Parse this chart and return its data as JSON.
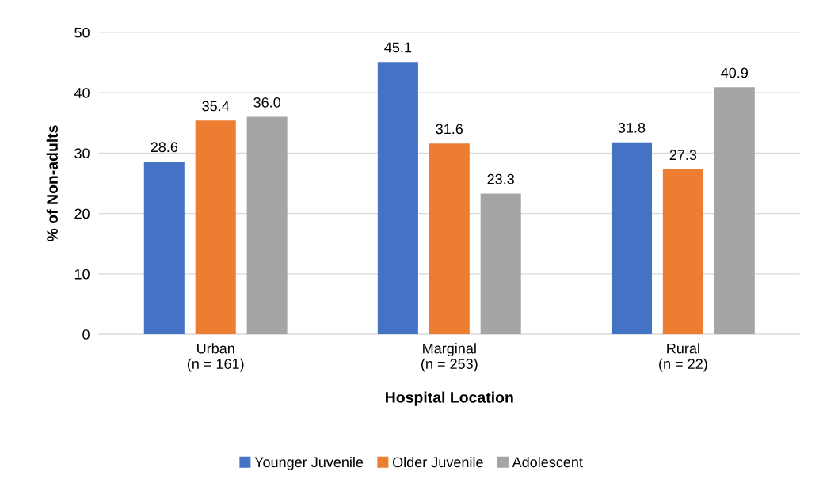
{
  "chart_data": {
    "type": "bar",
    "xlabel": "Hospital Location",
    "ylabel": "% of Non-adults",
    "categories": [
      "Urban\n(n = 161)",
      "Marginal\n(n = 253)",
      "Rural\n(n = 22)"
    ],
    "series": [
      {
        "name": "Younger Juvenile",
        "color": "#4472c4",
        "values": [
          28.6,
          45.1,
          31.8
        ],
        "value_labels": [
          "28.6",
          "45.1",
          "31.8"
        ]
      },
      {
        "name": "Older Juvenile",
        "color": "#ed7d31",
        "values": [
          35.4,
          31.6,
          27.3
        ],
        "value_labels": [
          "35.4",
          "31.6",
          "27.3"
        ]
      },
      {
        "name": "Adolescent",
        "color": "#a5a5a5",
        "values": [
          36.0,
          23.3,
          40.9
        ],
        "value_labels": [
          "36.0",
          "23.3",
          "40.9"
        ]
      }
    ],
    "ylim": [
      0,
      50
    ],
    "yticks": [
      0,
      10,
      20,
      30,
      40,
      50
    ],
    "grid": "y",
    "legend": "bottom"
  }
}
